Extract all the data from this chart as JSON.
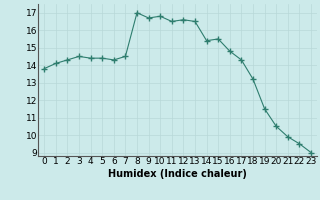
{
  "x": [
    0,
    1,
    2,
    3,
    4,
    5,
    6,
    7,
    8,
    9,
    10,
    11,
    12,
    13,
    14,
    15,
    16,
    17,
    18,
    19,
    20,
    21,
    22,
    23
  ],
  "y": [
    13.8,
    14.1,
    14.3,
    14.5,
    14.4,
    14.4,
    14.3,
    14.5,
    17.0,
    16.7,
    16.8,
    16.5,
    16.6,
    16.5,
    15.4,
    15.5,
    14.8,
    14.3,
    13.2,
    11.5,
    10.5,
    9.9,
    9.5,
    9.0
  ],
  "line_color": "#2e7d6e",
  "marker_color": "#2e7d6e",
  "bg_color": "#cceaea",
  "grid_color": "#b8d8d8",
  "xlabel": "Humidex (Indice chaleur)",
  "ylim": [
    8.8,
    17.5
  ],
  "xlim": [
    -0.5,
    23.5
  ],
  "yticks": [
    9,
    10,
    11,
    12,
    13,
    14,
    15,
    16,
    17
  ],
  "xticks": [
    0,
    1,
    2,
    3,
    4,
    5,
    6,
    7,
    8,
    9,
    10,
    11,
    12,
    13,
    14,
    15,
    16,
    17,
    18,
    19,
    20,
    21,
    22,
    23
  ],
  "xlabel_fontsize": 7,
  "tick_fontsize": 6.5
}
